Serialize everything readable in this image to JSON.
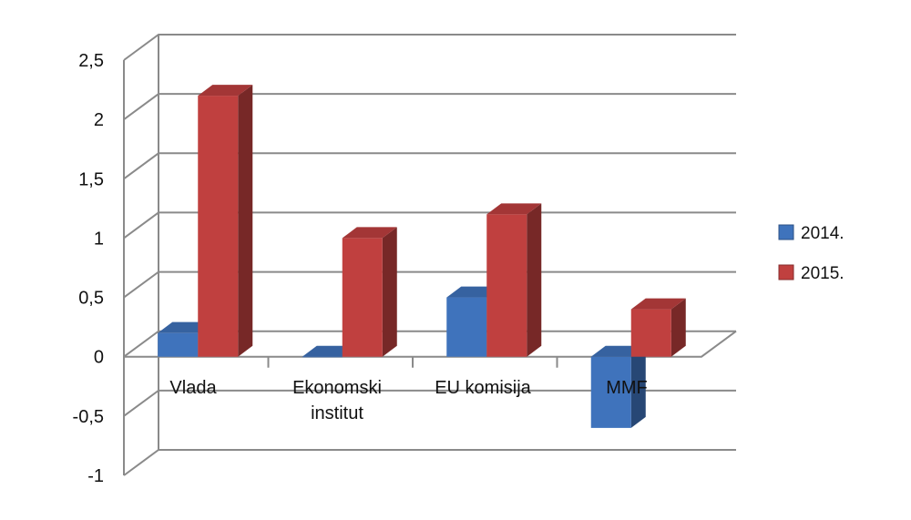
{
  "chart_data": {
    "type": "bar",
    "categories": [
      "Vlada",
      "Ekonomski institut",
      "EU komisija",
      "MMF"
    ],
    "category_lines": [
      [
        "Vlada"
      ],
      [
        "Ekonomski",
        "institut"
      ],
      [
        "EU komisija"
      ],
      [
        "MMF"
      ]
    ],
    "series": [
      {
        "name": "2014.",
        "values": [
          0.2,
          0.0,
          0.5,
          -0.6
        ],
        "color": "#3f73bc"
      },
      {
        "name": "2015.",
        "values": [
          2.2,
          1.0,
          1.2,
          0.4
        ],
        "color": "#c0403f"
      }
    ],
    "y_ticks": [
      "-1",
      "-0,5",
      "0",
      "0,5",
      "1",
      "1,5",
      "2",
      "2,5"
    ],
    "ylim": [
      -1,
      2.5
    ],
    "grid": true,
    "legend_position": "right",
    "bar_style": "3d"
  }
}
